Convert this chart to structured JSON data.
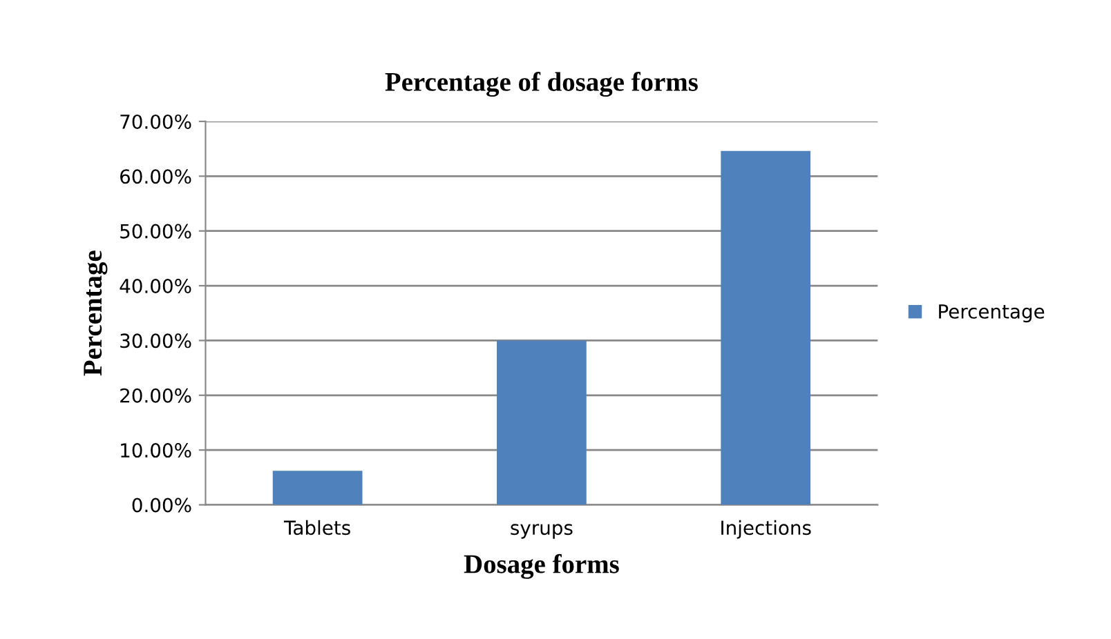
{
  "chart_data": {
    "type": "bar",
    "title": "Percentage of dosage forms",
    "xlabel": "Dosage forms",
    "ylabel": "Percentage",
    "categories": [
      "Tablets",
      "syrups",
      "Injections"
    ],
    "series": [
      {
        "name": "Percentage",
        "color": "#4f81bd",
        "values": [
          6.2,
          30.0,
          64.6
        ]
      }
    ],
    "ylim": [
      0,
      70
    ],
    "yticks": [
      {
        "value": 0,
        "label": "0.00%"
      },
      {
        "value": 10,
        "label": "10.00%"
      },
      {
        "value": 20,
        "label": "20.00%"
      },
      {
        "value": 30,
        "label": "30.00%"
      },
      {
        "value": 40,
        "label": "40.00%"
      },
      {
        "value": 50,
        "label": "50.00%"
      },
      {
        "value": 60,
        "label": "60.00%"
      },
      {
        "value": 70,
        "label": "70.00%"
      }
    ],
    "grid": "y",
    "legend": "right"
  }
}
